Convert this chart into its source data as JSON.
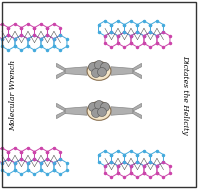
{
  "bg_color": "#ffffff",
  "pink_color": "#cc44aa",
  "blue_color": "#44aadd",
  "bond_color_pink": "#cc44aa",
  "bond_color_blue": "#44aadd",
  "wrench_color": "#b0b0b0",
  "hand_color": "#f5e6c8",
  "dark_color": "#555555",
  "text_left": "Molecular Wrench",
  "text_right": "Dictates the Helicity",
  "border_color": "#333333",
  "title": ""
}
